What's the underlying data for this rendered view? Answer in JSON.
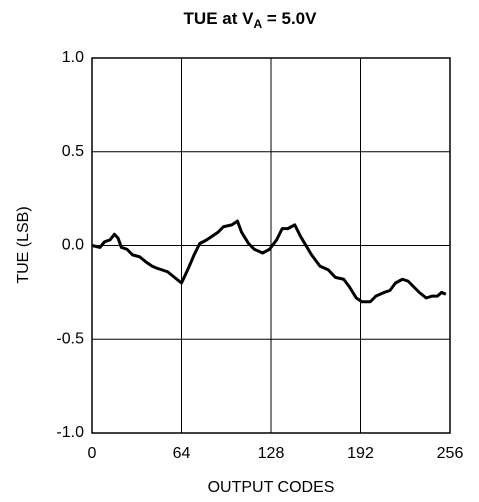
{
  "chart_data": {
    "type": "line",
    "title_parts": [
      "TUE at V",
      "A",
      " = 5.0V"
    ],
    "x_label": "OUTPUT CODES",
    "y_label": "TUE (LSB)",
    "xlim": [
      0,
      256
    ],
    "xticks": [
      0,
      64,
      128,
      192,
      256
    ],
    "ylim": [
      -1,
      1
    ],
    "yticks": [
      {
        "value": -1,
        "label": "-1.0"
      },
      -0.5,
      {
        "value": 0,
        "label": "0.0"
      },
      0.5,
      {
        "value": 1,
        "label": "1.0"
      }
    ],
    "grid": true,
    "series": [
      {
        "color": "#000000",
        "x": [
          0,
          5.7,
          9,
          12.9,
          16,
          18.6,
          21,
          25,
          29,
          34,
          39,
          43,
          46,
          50,
          54,
          59,
          64,
          69,
          73,
          77,
          82,
          86,
          90,
          94,
          100,
          104,
          107,
          112,
          116,
          122,
          127,
          132,
          136,
          140,
          145,
          149,
          153,
          157,
          163,
          169,
          174,
          180,
          184,
          189,
          193,
          199,
          203,
          209,
          213,
          217,
          222,
          226,
          230,
          234,
          239,
          243,
          247,
          250,
          253
        ],
        "values": [
          0,
          -0.01,
          0.02,
          0.03,
          0.06,
          0.04,
          -0.01,
          -0.02,
          -0.05,
          -0.06,
          -0.09,
          -0.11,
          -0.12,
          -0.13,
          -0.14,
          -0.17,
          -0.2,
          -0.12,
          -0.05,
          0.01,
          0.03,
          0.05,
          0.07,
          0.1,
          0.11,
          0.13,
          0.07,
          0.01,
          -0.02,
          -0.04,
          -0.02,
          0.03,
          0.09,
          0.09,
          0.11,
          0.05,
          0,
          -0.05,
          -0.11,
          -0.13,
          -0.17,
          -0.18,
          -0.22,
          -0.28,
          -0.3,
          -0.3,
          -0.27,
          -0.25,
          -0.24,
          -0.2,
          -0.18,
          -0.19,
          -0.22,
          -0.25,
          -0.28,
          -0.27,
          -0.27,
          -0.25,
          -0.26
        ]
      }
    ]
  }
}
